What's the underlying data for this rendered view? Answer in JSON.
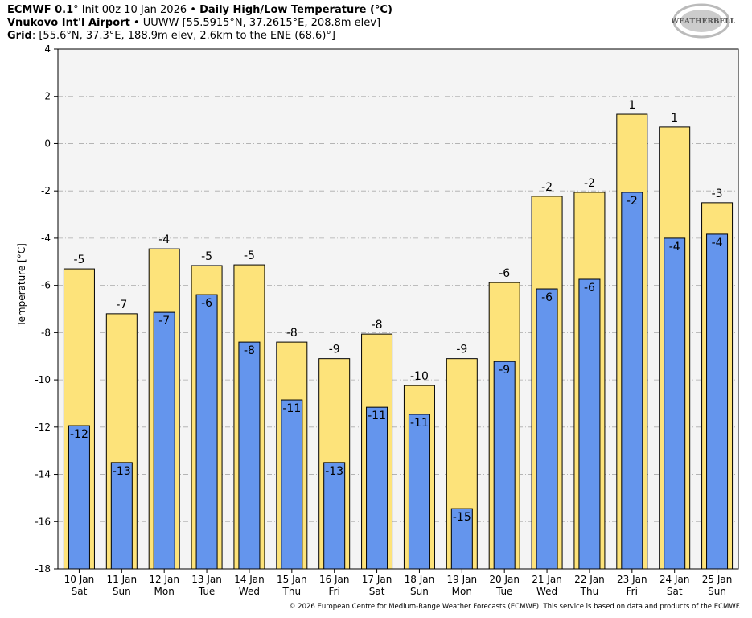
{
  "header": {
    "line1_bold1": "ECMWF 0.1",
    "line1_deg": "°",
    "line1_normal": " Init 00z 10 Jan 2026 • ",
    "line1_bold2": "Daily High/Low Temperature (°C)",
    "line2_bold": "Vnukovo Int'l Airport",
    "line2_normal": " • UUWW [55.5915°N, 37.2615°E, 208.8m elev]",
    "line3_bold": "Grid",
    "line3_normal": ": [55.6°N, 37.3°E, 188.9m elev, 2.6km to the ENE (68.6)°]"
  },
  "logo_text": "WeatherBELL Analytics LLC",
  "footer": "© 2026 European Centre for Medium-Range Weather Forecasts (ECMWF). This service is based on data and products of the ECMWF.",
  "chart_data": {
    "type": "bar",
    "ylabel": "Temperature [°C]",
    "ylim": [
      -18,
      4
    ],
    "yticks": [
      4,
      2,
      0,
      -2,
      -4,
      -6,
      -8,
      -10,
      -12,
      -14,
      -16,
      -18
    ],
    "grid": true,
    "colors": {
      "high": "#fde37a",
      "low": "#6495ed",
      "plot_bg": "#f4f4f4"
    },
    "categories": [
      [
        "10 Jan",
        "Sat"
      ],
      [
        "11 Jan",
        "Sun"
      ],
      [
        "12 Jan",
        "Mon"
      ],
      [
        "13 Jan",
        "Tue"
      ],
      [
        "14 Jan",
        "Wed"
      ],
      [
        "15 Jan",
        "Thu"
      ],
      [
        "16 Jan",
        "Fri"
      ],
      [
        "17 Jan",
        "Sat"
      ],
      [
        "18 Jan",
        "Sun"
      ],
      [
        "19 Jan",
        "Mon"
      ],
      [
        "20 Jan",
        "Tue"
      ],
      [
        "21 Jan",
        "Wed"
      ],
      [
        "22 Jan",
        "Thu"
      ],
      [
        "23 Jan",
        "Fri"
      ],
      [
        "24 Jan",
        "Sat"
      ],
      [
        "25 Jan",
        "Sun"
      ]
    ],
    "series": [
      {
        "key": "high",
        "values": [
          -5.3,
          -7.2,
          -4.45,
          -5.16,
          -5.13,
          -8.4,
          -9.1,
          -8.06,
          -10.24,
          -9.1,
          -5.88,
          -2.23,
          -2.06,
          1.24,
          0.7,
          -2.5
        ],
        "labels": [
          "-5",
          "-7",
          "-4",
          "-5",
          "-5",
          "-8",
          "-9",
          "-8",
          "-10",
          "-9",
          "-6",
          "-2",
          "-2",
          "1",
          "1",
          "-3"
        ]
      },
      {
        "key": "low",
        "values": [
          -11.94,
          -13.5,
          -7.14,
          -6.39,
          -8.4,
          -10.85,
          -13.5,
          -11.16,
          -11.46,
          -15.45,
          -9.22,
          -6.15,
          -5.74,
          -2.06,
          -4.0,
          -3.83
        ],
        "labels": [
          "-12",
          "-13",
          "-7",
          "-6",
          "-8",
          "-11",
          "-13",
          "-11",
          "-11",
          "-15",
          "-9",
          "-6",
          "-6",
          "-2",
          "-4",
          "-4"
        ]
      }
    ]
  }
}
